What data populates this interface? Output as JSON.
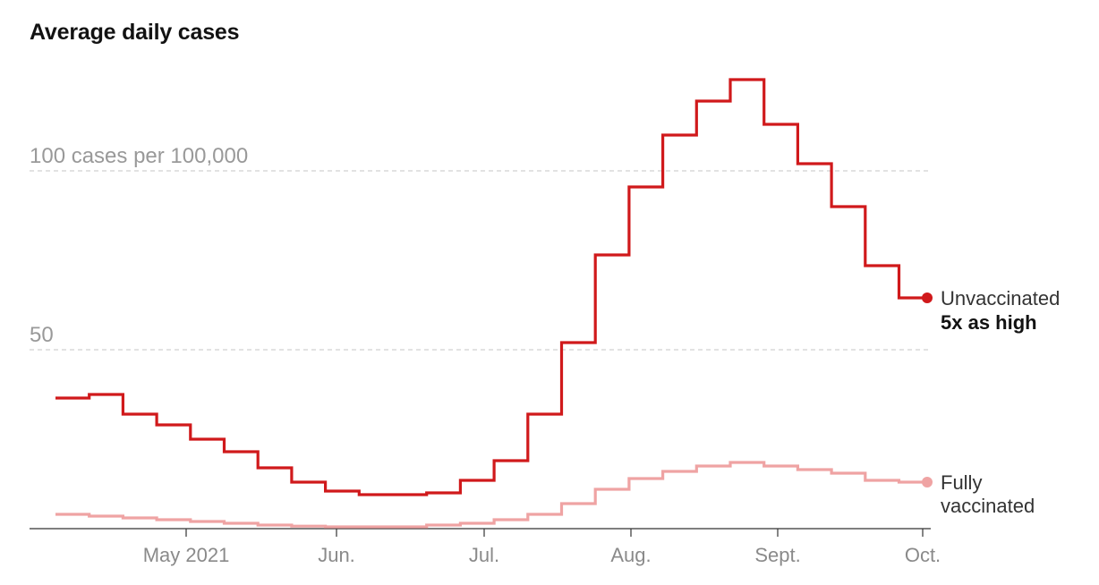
{
  "chart_data": {
    "type": "line",
    "step": true,
    "title": "Average daily cases",
    "ylim": [
      0,
      125
    ],
    "y_ticks": [
      {
        "value": 100,
        "label": "100 cases per 100,000"
      },
      {
        "value": 50,
        "label": "50"
      }
    ],
    "grid": true,
    "x_ticks": [
      "May 2021",
      "Jun.",
      "Jul.",
      "Aug.",
      "Sept.",
      "Oct."
    ],
    "series": [
      {
        "name": "Unvaccinated",
        "note": "5x as high",
        "color": "#d0191b",
        "values": [
          36.5,
          37.5,
          32,
          29,
          25,
          21.5,
          17,
          13,
          10.5,
          9.5,
          9.5,
          10,
          13.5,
          19,
          32,
          52,
          76.5,
          95.5,
          110,
          119.5,
          125.5,
          113,
          102,
          90,
          73.5,
          64.5
        ]
      },
      {
        "name": "Fully vaccinated",
        "color": "#efa3a3",
        "values": [
          4,
          3.5,
          3,
          2.5,
          2,
          1.5,
          1,
          0.7,
          0.5,
          0.5,
          0.5,
          1,
          1.5,
          2.5,
          4,
          7,
          11,
          14,
          16,
          17.5,
          18.5,
          17.5,
          16.5,
          15.5,
          13.5,
          13
        ]
      }
    ]
  }
}
